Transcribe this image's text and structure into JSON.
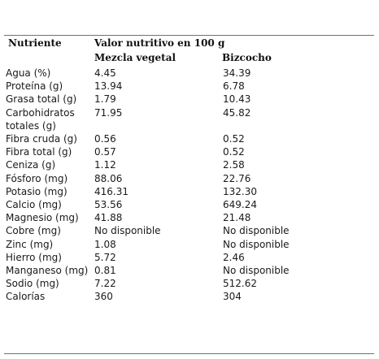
{
  "header": {
    "nutrient_label": "Nutriente",
    "value_label": "Valor nutritivo en 100 g",
    "col_mezcla": "Mezcla vegetal",
    "col_bizcocho": "Bizcocho"
  },
  "rows": [
    {
      "name": "Agua (%)",
      "mezcla": "4.45",
      "bizcocho": "34.39"
    },
    {
      "name": "Proteína (g)",
      "mezcla": "13.94",
      "bizcocho": "6.78"
    },
    {
      "name": "Grasa total (g)",
      "mezcla": "1.79",
      "bizcocho": "10.43"
    },
    {
      "name": "Carbohidratos totales (g)",
      "mezcla": "71.95",
      "bizcocho": "45.82"
    },
    {
      "name": "Fibra cruda (g)",
      "mezcla": "0.56",
      "bizcocho": "0.52"
    },
    {
      "name": "Fibra total (g)",
      "mezcla": "0.57",
      "bizcocho": "0.52"
    },
    {
      "name": "Ceniza (g)",
      "mezcla": "1.12",
      "bizcocho": "2.58"
    },
    {
      "name": "Fósforo (mg)",
      "mezcla": "88.06",
      "bizcocho": "22.76"
    },
    {
      "name": "Potasio (mg)",
      "mezcla": "416.31",
      "bizcocho": "132.30"
    },
    {
      "name": "Calcio (mg)",
      "mezcla": "53.56",
      "bizcocho": "649.24"
    },
    {
      "name": "Magnesio (mg)",
      "mezcla": "41.88",
      "bizcocho": "21.48"
    },
    {
      "name": "Cobre (mg)",
      "mezcla": "No disponible",
      "bizcocho": "No disponible"
    },
    {
      "name": "Zinc (mg)",
      "mezcla": "1.08",
      "bizcocho": "No disponible"
    },
    {
      "name": "Hierro (mg)",
      "mezcla": "5.72",
      "bizcocho": "2.46"
    },
    {
      "name": "Manganeso (mg)",
      "mezcla": "0.81",
      "bizcocho": "No disponible"
    },
    {
      "name": "Sodio (mg)",
      "mezcla": "7.22",
      "bizcocho": "512.62"
    },
    {
      "name": "Calorías",
      "mezcla": "360",
      "bizcocho": "304"
    }
  ],
  "colors": {
    "rule": "#4d8a4d",
    "text": "#1a1a1a"
  }
}
